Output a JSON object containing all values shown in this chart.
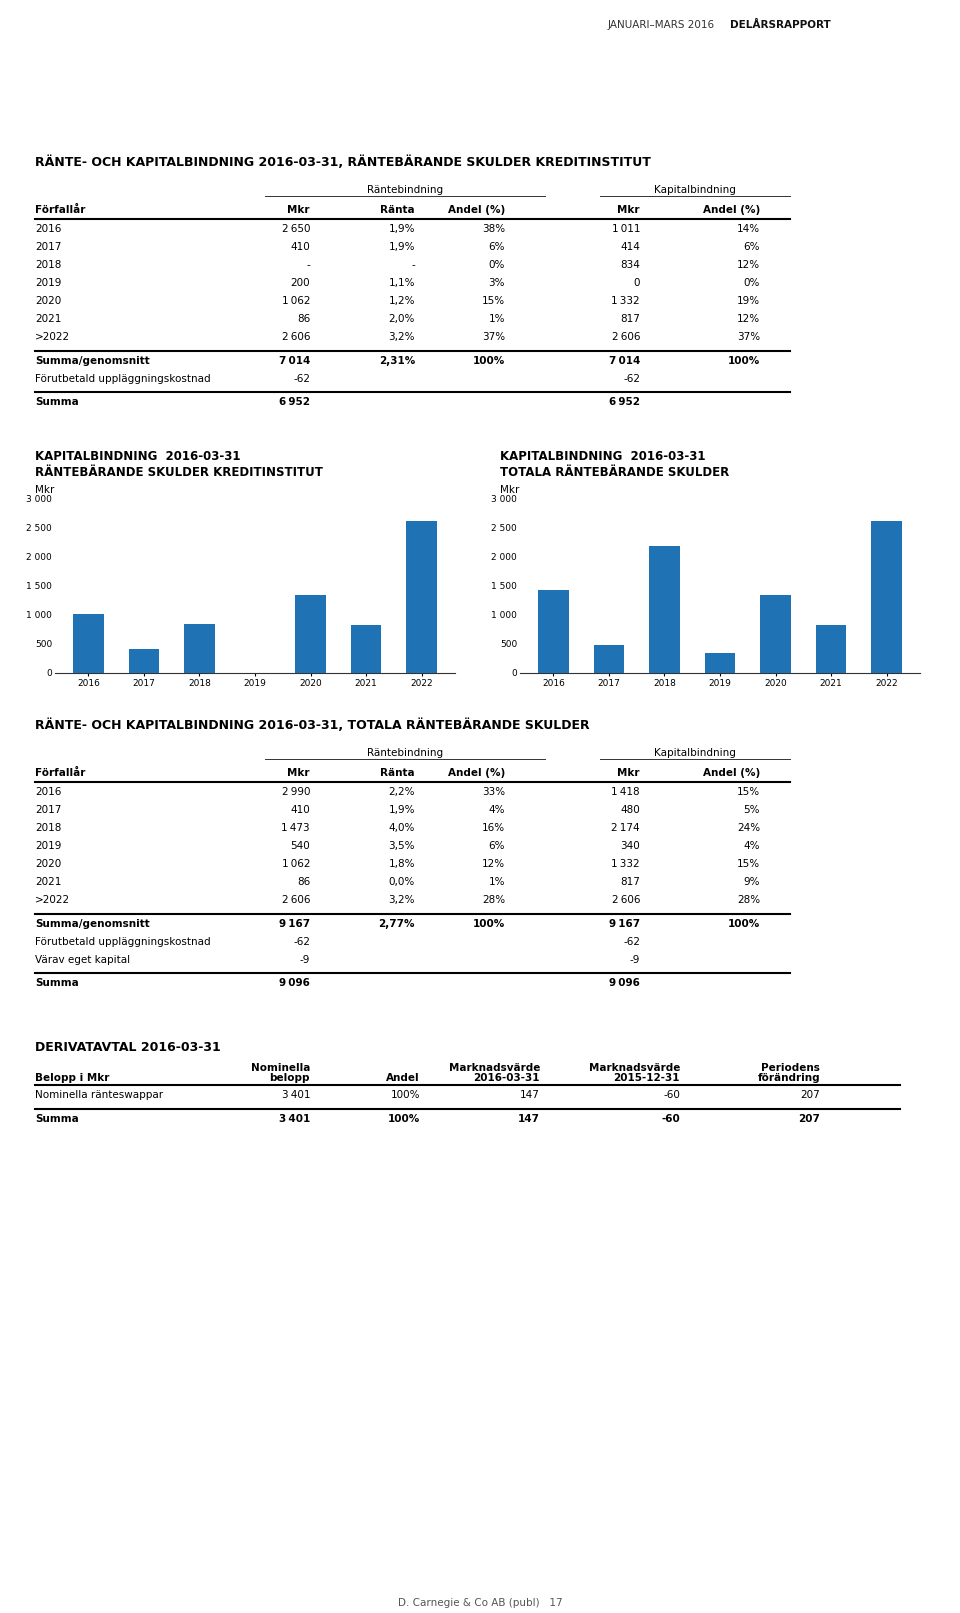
{
  "header_normal": "JANUARI–MARS 2016 ",
  "header_bold": "DELÅRSRAPPORT",
  "page_num": "17",
  "footer_text": "D. Carnegie & Co AB (publ)",
  "table1_title": "RÄNTE- OCH KAPITALBINDNING 2016-03-31, RÄNTEBÄRANDE SKULDER KREDITINSTITUT",
  "col_labels": [
    "Förfallår",
    "Mkr",
    "Ränta",
    "Andel (%)",
    "Mkr",
    "Andel (%)"
  ],
  "col_group1": "Räntebindning",
  "col_group2": "Kapitalbindning",
  "table1_rows": [
    [
      "2016",
      "2 650",
      "1,9%",
      "38%",
      "1 011",
      "14%"
    ],
    [
      "2017",
      "410",
      "1,9%",
      "6%",
      "414",
      "6%"
    ],
    [
      "2018",
      "-",
      "-",
      "0%",
      "834",
      "12%"
    ],
    [
      "2019",
      "200",
      "1,1%",
      "3%",
      "0",
      "0%"
    ],
    [
      "2020",
      "1 062",
      "1,2%",
      "15%",
      "1 332",
      "19%"
    ],
    [
      "2021",
      "86",
      "2,0%",
      "1%",
      "817",
      "12%"
    ],
    [
      ">2022",
      "2 606",
      "3,2%",
      "37%",
      "2 606",
      "37%"
    ]
  ],
  "table1_sum_row": [
    "Summa/genomsnitt",
    "7 014",
    "2,31%",
    "100%",
    "7 014",
    "100%"
  ],
  "table1_extra_row1": [
    "Förutbetald uppläggningskostnad",
    "-62",
    "",
    "",
    "-62",
    ""
  ],
  "table1_extra_row2": [
    "Summa",
    "6 952",
    "",
    "",
    "6 952",
    ""
  ],
  "chart1_title1": "KAPITALBINDNING  2016-03-31",
  "chart1_title2": "RÄNTEBÄRANDE SKULDER KREDITINSTITUT",
  "chart1_years": [
    "2016",
    "2017",
    "2018",
    "2019",
    "2020",
    "2021",
    "2022"
  ],
  "chart1_values": [
    1011,
    414,
    834,
    0,
    1332,
    817,
    2606
  ],
  "chart1_color": "#1F72B4",
  "chart2_title1": "KAPITALBINDNING  2016-03-31",
  "chart2_title2": "TOTALA RÄNTEBÄRANDE SKULDER",
  "chart2_years": [
    "2016",
    "2017",
    "2018",
    "2019",
    "2020",
    "2021",
    "2022"
  ],
  "chart2_values": [
    1418,
    480,
    2174,
    340,
    1332,
    817,
    2606
  ],
  "chart2_color": "#1F72B4",
  "table2_title": "RÄNTE- OCH KAPITALBINDNING 2016-03-31, TOTALA RÄNTEBÄRANDE SKULDER",
  "table2_rows": [
    [
      "2016",
      "2 990",
      "2,2%",
      "33%",
      "1 418",
      "15%"
    ],
    [
      "2017",
      "410",
      "1,9%",
      "4%",
      "480",
      "5%"
    ],
    [
      "2018",
      "1 473",
      "4,0%",
      "16%",
      "2 174",
      "24%"
    ],
    [
      "2019",
      "540",
      "3,5%",
      "6%",
      "340",
      "4%"
    ],
    [
      "2020",
      "1 062",
      "1,8%",
      "12%",
      "1 332",
      "15%"
    ],
    [
      "2021",
      "86",
      "0,0%",
      "1%",
      "817",
      "9%"
    ],
    [
      ">2022",
      "2 606",
      "3,2%",
      "28%",
      "2 606",
      "28%"
    ]
  ],
  "table2_sum_row": [
    "Summa/genomsnitt",
    "9 167",
    "2,77%",
    "100%",
    "9 167",
    "100%"
  ],
  "table2_extra_row1": [
    "Förutbetald uppläggningskostnad",
    "-62",
    "",
    "",
    "-62",
    ""
  ],
  "table2_extra_row2": [
    "Värav eget kapital",
    "-9",
    "",
    "",
    "-9",
    ""
  ],
  "table2_extra_row3": [
    "Summa",
    "9 096",
    "",
    "",
    "9 096",
    ""
  ],
  "table3_title": "DERIVATAVTAL 2016-03-31",
  "table3_col_labels": [
    "Belopp i Mkr",
    "Nominella\nbelopp",
    "Andel",
    "Marknadsvärde\n2016-03-31",
    "Marknadsvärde\n2015-12-31",
    "Periodens\nförändring"
  ],
  "table3_rows": [
    [
      "Nominella ränteswappar",
      "3 401",
      "100%",
      "147",
      "-60",
      "207"
    ]
  ],
  "table3_sum_row": [
    "Summa",
    "3 401",
    "100%",
    "147",
    "-60",
    "207"
  ],
  "bg_color": "#ffffff",
  "text_color": "#000000"
}
